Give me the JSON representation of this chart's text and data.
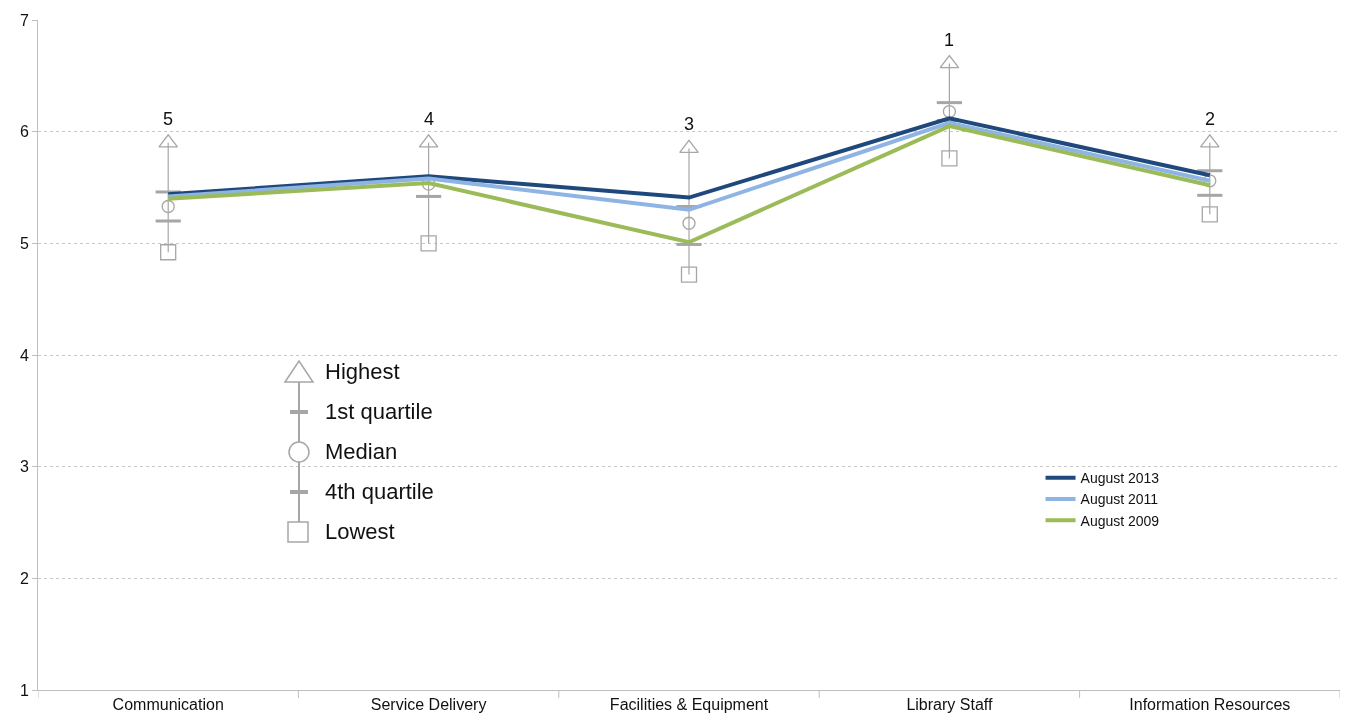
{
  "chart_data": {
    "type": "line",
    "categories": [
      "Communication",
      "Service Delivery",
      "Facilities & Equipment",
      "Library Staff",
      "Information Resources"
    ],
    "series": [
      {
        "name": "August 2013",
        "color": "#1f497d",
        "values": [
          5.44,
          5.6,
          5.41,
          6.12,
          5.61
        ]
      },
      {
        "name": "August 2011",
        "color": "#8db4e2",
        "values": [
          5.42,
          5.58,
          5.3,
          6.08,
          5.56
        ]
      },
      {
        "name": "August 2009",
        "color": "#9bbb59",
        "values": [
          5.4,
          5.54,
          5.01,
          6.05,
          5.52
        ]
      },
      {
        "type": "box",
        "color": "#a6a6a6",
        "boxes": [
          {
            "low": 4.92,
            "q1": 5.2,
            "median": 5.33,
            "q3": 5.46,
            "high": 5.9
          },
          {
            "low": 5.0,
            "q1": 5.42,
            "median": 5.53,
            "q3": 5.59,
            "high": 5.9
          },
          {
            "low": 4.72,
            "q1": 4.99,
            "median": 5.18,
            "q3": 5.33,
            "high": 5.85
          },
          {
            "low": 5.76,
            "q1": 6.1,
            "median": 6.18,
            "q3": 6.26,
            "high": 6.61
          },
          {
            "low": 5.26,
            "q1": 5.43,
            "median": 5.56,
            "q3": 5.65,
            "high": 5.9
          }
        ]
      },
      {
        "type": "scatter",
        "name": "Highest",
        "color": "#a6a6a6",
        "marker": "triangle",
        "values": [
          5.9,
          5.9,
          5.85,
          6.61,
          5.9
        ]
      },
      {
        "type": "scatter",
        "name": "Lowest",
        "color": "#a6a6a6",
        "marker": "square",
        "values": [
          4.92,
          5.0,
          4.72,
          5.76,
          5.26
        ]
      }
    ],
    "ylim": [
      1,
      7
    ],
    "yticks": [
      1,
      2,
      3,
      4,
      5,
      6,
      7
    ],
    "grid": "y",
    "legend": "bottom right",
    "line_style": "solid",
    "marker": "none",
    "annotations": [
      "1st quartile",
      "Median",
      "4th quartile",
      {
        "text": "5",
        "x": "Communication",
        "y": 5.9
      },
      {
        "text": "4",
        "x": "Service Delivery",
        "y": 5.9
      },
      {
        "text": "3",
        "x": "Facilities & Equipment",
        "y": 5.85
      },
      {
        "text": "1",
        "x": "Library Staff",
        "y": 6.61
      },
      {
        "text": "2",
        "x": "Information Resources",
        "y": 5.9
      }
    ]
  }
}
